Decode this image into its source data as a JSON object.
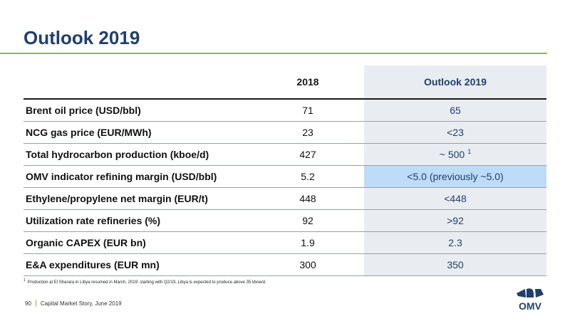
{
  "title": "Outlook 2019",
  "columns": {
    "label": "",
    "year": "2018",
    "outlook": "Outlook 2019"
  },
  "rows": [
    {
      "label": "Brent oil price (USD/bbl)",
      "v2018": "71",
      "outlook": "65",
      "footnote_ref": "",
      "highlight": false
    },
    {
      "label": "NCG gas price (EUR/MWh)",
      "v2018": "23",
      "outlook": "<23",
      "footnote_ref": "",
      "highlight": false
    },
    {
      "label": "Total hydrocarbon production (kboe/d)",
      "v2018": "427",
      "outlook": "~ 500",
      "footnote_ref": "1",
      "highlight": false
    },
    {
      "label": "OMV indicator refining margin (USD/bbl)",
      "v2018": "5.2",
      "outlook": "<5.0 (previously ~5.0)",
      "footnote_ref": "",
      "highlight": true
    },
    {
      "label": "Ethylene/propylene net margin (EUR/t)",
      "v2018": "448",
      "outlook": "<448",
      "footnote_ref": "",
      "highlight": false
    },
    {
      "label": "Utilization rate refineries (%)",
      "v2018": "92",
      "outlook": ">92",
      "footnote_ref": "",
      "highlight": false
    },
    {
      "label": "Organic CAPEX (EUR bn)",
      "v2018": "1.9",
      "outlook": "2.3",
      "footnote_ref": "",
      "highlight": false
    },
    {
      "label": "E&A expenditures (EUR mn)",
      "v2018": "300",
      "outlook": "350",
      "footnote_ref": "",
      "highlight": false
    }
  ],
  "footnote": {
    "marker": "1",
    "text": "Production at El Sharara in Libya resumed in March, 2019; starting with Q2/19, Libya is expected to produce above 35 kboe/d."
  },
  "footer": {
    "page": "90",
    "text": "Capital Market Story, June 2019"
  },
  "logo": {
    "text": "OMV",
    "icon": "omv-logo-icon",
    "color": "#1f3f6e"
  },
  "colors": {
    "title": "#1f3f6e",
    "accent_green": "#7fbf3c",
    "outlook_column_bg": "#e9ecf1",
    "highlight_cell": "#bcdcf7"
  }
}
